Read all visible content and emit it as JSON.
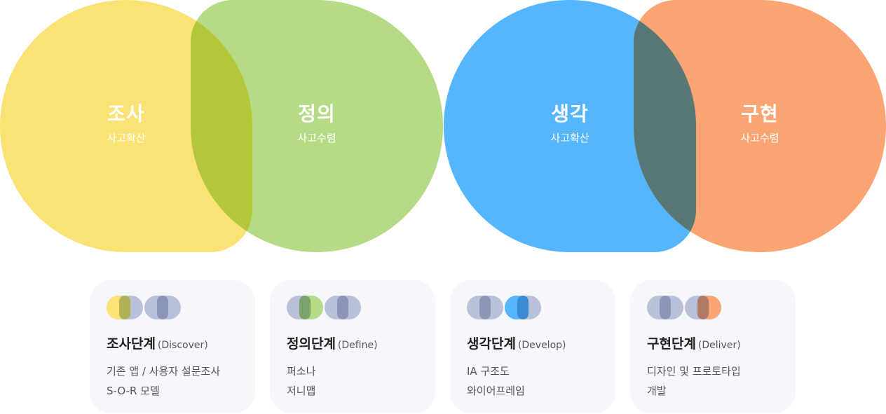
{
  "stages": [
    {
      "title": "조사",
      "subtitle": "사고확산"
    },
    {
      "title": "정의",
      "subtitle": "사고수렴"
    },
    {
      "title": "생각",
      "subtitle": "사고확산"
    },
    {
      "title": "구현",
      "subtitle": "사고수렴"
    }
  ],
  "cards": [
    {
      "title": "조사단계",
      "english": "(Discover)",
      "lines": [
        "기존 앱 / 사용자 설문조사",
        "S-O-R 모델"
      ]
    },
    {
      "title": "정의단계",
      "english": "(Define)",
      "lines": [
        "퍼소나",
        "저니맵"
      ]
    },
    {
      "title": "생각단계",
      "english": "(Develop)",
      "lines": [
        "IA 구조도",
        "와이어프레임"
      ]
    },
    {
      "title": "구현단계",
      "english": "(Deliver)",
      "lines": [
        "디자인 및 프로토타입",
        "개발"
      ]
    }
  ],
  "colors": {
    "yellow": "#fbe274",
    "green": "#b6db87",
    "overlap_yg": "#b4c73a",
    "blue": "#55b5fd",
    "orange": "#fba574",
    "overlap_bo": "#597775",
    "icon_grey": "#b9c1d8",
    "icon_grey_dark": "#8c97b7",
    "card_bg": "#f6f7fb"
  }
}
